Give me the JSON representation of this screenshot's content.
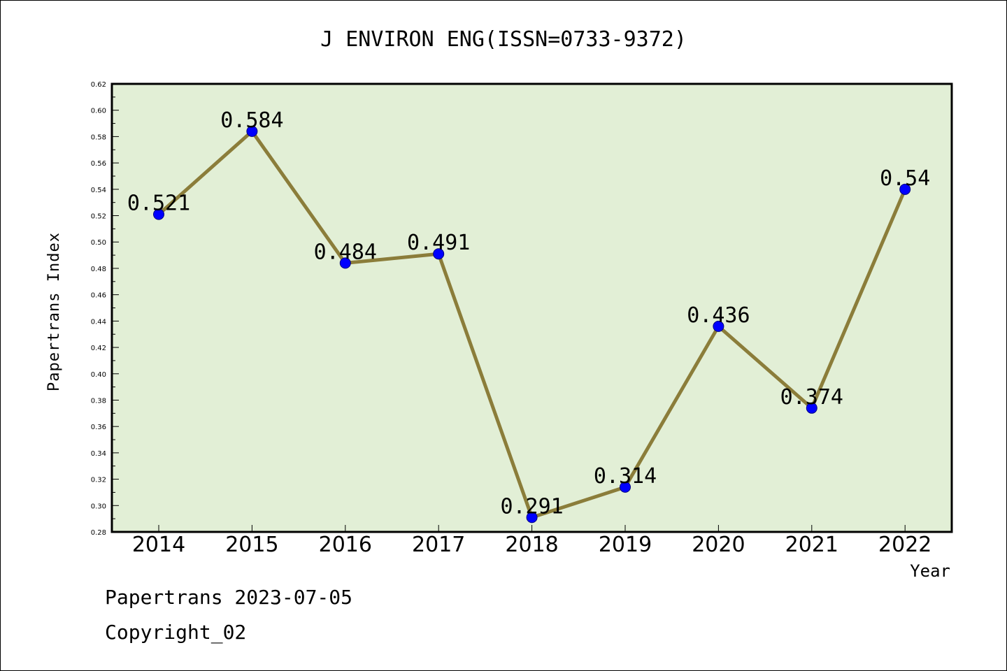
{
  "chart_data": {
    "type": "line",
    "title": "J ENVIRON ENG(ISSN=0733-9372)",
    "xlabel": "Year",
    "ylabel": "Papertrans Index",
    "categories": [
      "2014",
      "2015",
      "2016",
      "2017",
      "2018",
      "2019",
      "2020",
      "2021",
      "2022"
    ],
    "values": [
      0.521,
      0.584,
      0.484,
      0.491,
      0.291,
      0.314,
      0.436,
      0.374,
      0.54
    ],
    "data_labels": [
      "0.521",
      "0.584",
      "0.484",
      "0.491",
      "0.291",
      "0.314",
      "0.436",
      "0.374",
      "0.54"
    ],
    "ylim": [
      0.28,
      0.62
    ],
    "yticks": [
      "0.28",
      "0.30",
      "0.32",
      "0.34",
      "0.36",
      "0.38",
      "0.40",
      "0.42",
      "0.44",
      "0.46",
      "0.48",
      "0.50",
      "0.52",
      "0.54",
      "0.56",
      "0.58",
      "0.60",
      "0.62"
    ],
    "grid": false,
    "legend": "none",
    "colors": {
      "plot_background": "#e2efd6",
      "line": "#8b7d3a",
      "marker": "#0000ff",
      "marker_edge": "#000080"
    }
  },
  "footer": {
    "line1": "Papertrans 2023-07-05",
    "line2": "Copyright_02"
  }
}
